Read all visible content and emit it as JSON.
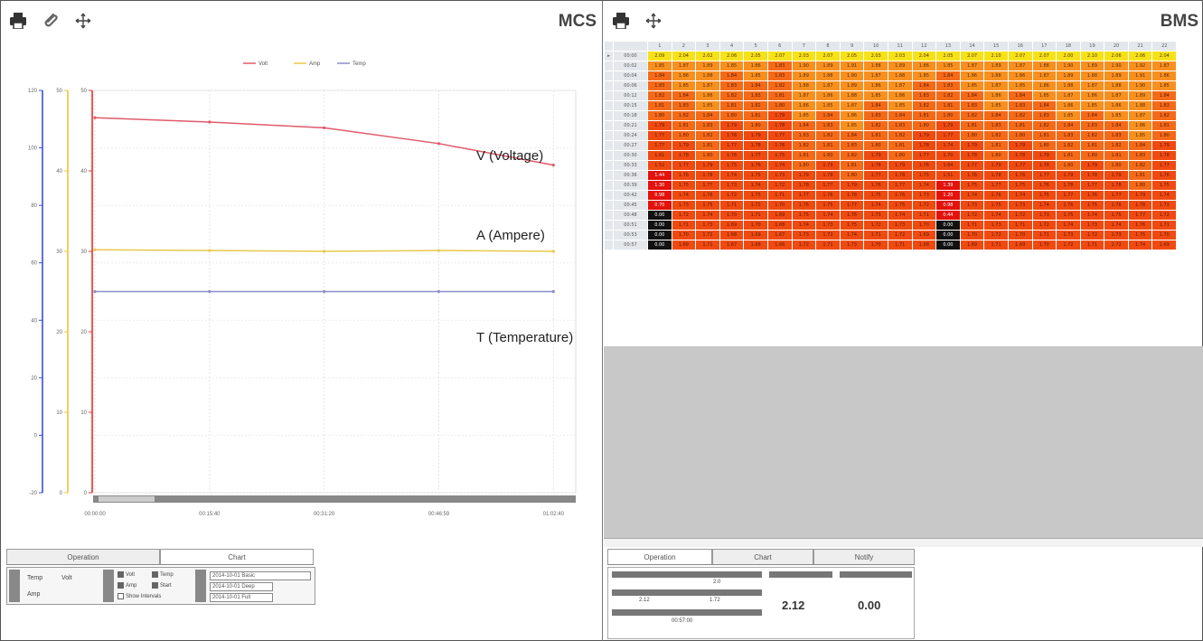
{
  "mcs": {
    "title": "MCS",
    "toolbar": [
      "printer-icon",
      "paperclip-icon",
      "move-icon"
    ],
    "legend": [
      "Volt",
      "Amp",
      "Temp"
    ],
    "annotations": {
      "voltage": "V (Voltage)",
      "ampere": "A (Ampere)",
      "temperature": "T (Temperature)"
    },
    "x_ticks": [
      "00:00:00",
      "00:15:40",
      "00:31:20",
      "00:46:59",
      "01:02:40"
    ],
    "y_ticks_volt": [
      "120",
      "100",
      "80",
      "60",
      "40",
      "20",
      "0",
      "-20"
    ],
    "y_ticks_amp": [
      "50",
      "40",
      "30",
      "20",
      "10",
      "0"
    ],
    "y_ticks_temp": [
      "50",
      "40",
      "30",
      "20",
      "10",
      "0"
    ],
    "tabs": [
      "Operation",
      "Chart"
    ],
    "controls": {
      "labels": [
        "Temp",
        "Volt",
        "Amp"
      ],
      "checkboxes": [
        "Volt",
        "Temp",
        "Amp",
        "Start",
        "Show Intervals"
      ],
      "buttons": [
        "2014-10-01 Basic",
        "2014-10-01 Deep",
        "2014-10-01 Full"
      ]
    },
    "colors": {
      "volt": "#e05a6a",
      "amp": "#e8c84a",
      "temp": "#8a8fc8",
      "axis_blue": "#3a4fd8",
      "axis_yellow": "#f0c43a",
      "axis_red": "#e23a3a"
    }
  },
  "chart_data": {
    "type": "line",
    "x": [
      "00:00:00",
      "00:15:40",
      "00:31:20",
      "00:46:59",
      "01:02:40"
    ],
    "series": [
      {
        "name": "Volt",
        "values": [
          110.5,
          109.0,
          107.0,
          101.5,
          94.0
        ]
      },
      {
        "name": "Amp",
        "values": [
          30.2,
          30.1,
          30.0,
          30.1,
          30.0
        ]
      },
      {
        "name": "Temp",
        "values": [
          25.0,
          25.0,
          25.0,
          25.0,
          25.0
        ]
      }
    ],
    "ylim": [
      -20,
      120
    ],
    "grid": true,
    "legend": "top-center"
  },
  "bms": {
    "title": "BMS",
    "toolbar": [
      "printer-icon",
      "move-icon"
    ],
    "columns": [
      "1",
      "2",
      "3",
      "4",
      "5",
      "6",
      "7",
      "8",
      "9",
      "10",
      "11",
      "12",
      "13",
      "14",
      "15",
      "16",
      "17",
      "18",
      "19",
      "20",
      "21",
      "22"
    ],
    "rows": [
      {
        "label": "00:00",
        "values": [
          "2.09",
          "2.04",
          "2.02",
          "2.06",
          "2.05",
          "2.07",
          "2.03",
          "2.07",
          "2.05",
          "2.03",
          "2.03",
          "2.04",
          "2.05",
          "2.07",
          "2.10",
          "2.07",
          "2.07",
          "2.00",
          "2.10",
          "2.06",
          "2.06",
          "2.04"
        ]
      },
      {
        "label": "00:02",
        "values": [
          "1.85",
          "1.87",
          "1.89",
          "1.85",
          "1.86",
          "1.83",
          "1.90",
          "1.89",
          "1.91",
          "1.88",
          "1.89",
          "1.86",
          "1.85",
          "1.87",
          "1.89",
          "1.87",
          "1.88",
          "1.90",
          "1.89",
          "1.90",
          "1.92",
          "1.87"
        ]
      },
      {
        "label": "00:04",
        "values": [
          "1.84",
          "1.86",
          "1.88",
          "1.84",
          "1.85",
          "1.83",
          "1.89",
          "1.88",
          "1.90",
          "1.87",
          "1.88",
          "1.85",
          "1.84",
          "1.86",
          "1.88",
          "1.86",
          "1.87",
          "1.89",
          "1.88",
          "1.89",
          "1.91",
          "1.86"
        ]
      },
      {
        "label": "00:06",
        "values": [
          "1.83",
          "1.85",
          "1.87",
          "1.83",
          "1.84",
          "1.82",
          "1.88",
          "1.87",
          "1.89",
          "1.86",
          "1.87",
          "1.84",
          "1.83",
          "1.85",
          "1.87",
          "1.85",
          "1.86",
          "1.88",
          "1.87",
          "1.88",
          "1.90",
          "1.85"
        ]
      },
      {
        "label": "00:12",
        "values": [
          "1.82",
          "1.84",
          "1.86",
          "1.82",
          "1.83",
          "1.81",
          "1.87",
          "1.86",
          "1.88",
          "1.85",
          "1.86",
          "1.83",
          "1.82",
          "1.84",
          "1.86",
          "1.84",
          "1.85",
          "1.87",
          "1.86",
          "1.87",
          "1.89",
          "1.84"
        ]
      },
      {
        "label": "00:15",
        "values": [
          "1.81",
          "1.83",
          "1.85",
          "1.81",
          "1.82",
          "1.80",
          "1.86",
          "1.85",
          "1.87",
          "1.84",
          "1.85",
          "1.82",
          "1.81",
          "1.83",
          "1.85",
          "1.83",
          "1.84",
          "1.86",
          "1.85",
          "1.86",
          "1.88",
          "1.83"
        ]
      },
      {
        "label": "00:18",
        "values": [
          "1.80",
          "1.82",
          "1.84",
          "1.80",
          "1.81",
          "1.79",
          "1.85",
          "1.84",
          "1.86",
          "1.83",
          "1.84",
          "1.81",
          "1.80",
          "1.82",
          "1.84",
          "1.82",
          "1.83",
          "1.85",
          "1.84",
          "1.85",
          "1.87",
          "1.82"
        ]
      },
      {
        "label": "00:21",
        "values": [
          "1.79",
          "1.81",
          "1.83",
          "1.79",
          "1.80",
          "1.78",
          "1.84",
          "1.83",
          "1.85",
          "1.82",
          "1.83",
          "1.80",
          "1.79",
          "1.81",
          "1.83",
          "1.81",
          "1.82",
          "1.84",
          "1.83",
          "1.84",
          "1.86",
          "1.81"
        ]
      },
      {
        "label": "00:24",
        "values": [
          "1.77",
          "1.80",
          "1.82",
          "1.78",
          "1.79",
          "1.77",
          "1.83",
          "1.82",
          "1.84",
          "1.81",
          "1.82",
          "1.79",
          "1.77",
          "1.80",
          "1.82",
          "1.80",
          "1.81",
          "1.83",
          "1.82",
          "1.83",
          "1.85",
          "1.80"
        ]
      },
      {
        "label": "00:27",
        "values": [
          "1.77",
          "1.79",
          "1.81",
          "1.77",
          "1.78",
          "1.76",
          "1.82",
          "1.81",
          "1.83",
          "1.80",
          "1.81",
          "1.78",
          "1.74",
          "1.79",
          "1.81",
          "1.79",
          "1.80",
          "1.82",
          "1.81",
          "1.82",
          "1.84",
          "1.79"
        ]
      },
      {
        "label": "00:30",
        "values": [
          "1.61",
          "1.78",
          "1.80",
          "1.76",
          "1.77",
          "1.75",
          "1.81",
          "1.80",
          "1.82",
          "1.79",
          "1.80",
          "1.77",
          "1.70",
          "1.78",
          "1.80",
          "1.78",
          "1.79",
          "1.81",
          "1.80",
          "1.81",
          "1.83",
          "1.78"
        ]
      },
      {
        "label": "00:33",
        "values": [
          "1.52",
          "1.77",
          "1.79",
          "1.75",
          "1.76",
          "1.74",
          "1.80",
          "1.79",
          "1.81",
          "1.78",
          "1.79",
          "1.76",
          "1.64",
          "1.77",
          "1.79",
          "1.77",
          "1.78",
          "1.80",
          "1.79",
          "1.80",
          "1.82",
          "1.77"
        ]
      },
      {
        "label": "00:36",
        "values": [
          "1.44",
          "1.76",
          "1.78",
          "1.74",
          "1.75",
          "1.73",
          "1.79",
          "1.78",
          "1.80",
          "1.77",
          "1.78",
          "1.75",
          "1.51",
          "1.76",
          "1.78",
          "1.76",
          "1.77",
          "1.79",
          "1.78",
          "1.79",
          "1.81",
          "1.76"
        ]
      },
      {
        "label": "00:39",
        "values": [
          "1.30",
          "1.75",
          "1.77",
          "1.73",
          "1.74",
          "1.72",
          "1.78",
          "1.77",
          "1.79",
          "1.76",
          "1.77",
          "1.74",
          "1.39",
          "1.75",
          "1.77",
          "1.75",
          "1.76",
          "1.78",
          "1.77",
          "1.78",
          "1.80",
          "1.75"
        ]
      },
      {
        "label": "00:42",
        "values": [
          "0.98",
          "1.74",
          "1.76",
          "1.72",
          "1.73",
          "1.71",
          "1.77",
          "1.76",
          "1.78",
          "1.75",
          "1.76",
          "1.73",
          "1.20",
          "1.74",
          "1.76",
          "1.74",
          "1.75",
          "1.77",
          "1.76",
          "1.77",
          "1.79",
          "1.74"
        ]
      },
      {
        "label": "00:45",
        "values": [
          "0.70",
          "1.73",
          "1.75",
          "1.71",
          "1.72",
          "1.70",
          "1.76",
          "1.75",
          "1.77",
          "1.74",
          "1.75",
          "1.72",
          "0.98",
          "1.73",
          "1.75",
          "1.73",
          "1.74",
          "1.76",
          "1.75",
          "1.76",
          "1.78",
          "1.73"
        ]
      },
      {
        "label": "00:48",
        "values": [
          "0.00",
          "1.72",
          "1.74",
          "1.70",
          "1.71",
          "1.69",
          "1.75",
          "1.74",
          "1.76",
          "1.73",
          "1.74",
          "1.71",
          "0.44",
          "1.72",
          "1.74",
          "1.72",
          "1.73",
          "1.75",
          "1.74",
          "1.75",
          "1.77",
          "1.72"
        ]
      },
      {
        "label": "00:51",
        "values": [
          "0.00",
          "1.71",
          "1.73",
          "1.69",
          "1.70",
          "1.68",
          "1.74",
          "1.73",
          "1.75",
          "1.72",
          "1.73",
          "1.70",
          "0.00",
          "1.71",
          "1.73",
          "1.71",
          "1.72",
          "1.74",
          "1.73",
          "1.74",
          "1.76",
          "1.71"
        ]
      },
      {
        "label": "00:53",
        "values": [
          "0.00",
          "1.70",
          "1.72",
          "1.68",
          "1.69",
          "1.67",
          "1.73",
          "1.72",
          "1.74",
          "1.71",
          "1.72",
          "1.69",
          "0.00",
          "1.70",
          "1.72",
          "1.70",
          "1.71",
          "1.73",
          "1.72",
          "1.73",
          "1.75",
          "1.70"
        ]
      },
      {
        "label": "00:57",
        "values": [
          "0.00",
          "1.69",
          "1.71",
          "1.67",
          "1.68",
          "1.66",
          "1.72",
          "1.71",
          "1.73",
          "1.70",
          "1.71",
          "1.68",
          "0.00",
          "1.69",
          "1.71",
          "1.69",
          "1.70",
          "1.72",
          "1.71",
          "1.72",
          "1.74",
          "1.69"
        ]
      }
    ],
    "tabs": [
      "Operation",
      "Chart",
      "Notify"
    ],
    "stats": {
      "value_top": "2.0",
      "value_left": "2.12",
      "value_right": "1.72",
      "big_max": "2.12",
      "big_min": "0.00",
      "time": "00:57:00"
    }
  }
}
